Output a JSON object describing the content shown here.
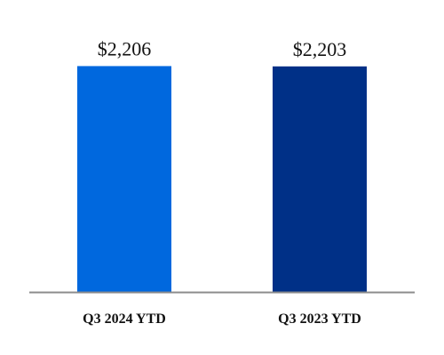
{
  "chart_data": {
    "type": "bar",
    "categories": [
      "Q3 2024 YTD",
      "Q3 2023 YTD"
    ],
    "values": [
      2206,
      2203
    ],
    "data_labels": [
      "$2,206",
      "$2,203"
    ],
    "colors": [
      "#0068DE",
      "#003087"
    ],
    "axis_color": "#8C8C8C",
    "ylim": [
      0,
      2600
    ],
    "grid": false,
    "legend": "none",
    "title": "",
    "xlabel": "",
    "ylabel": ""
  }
}
